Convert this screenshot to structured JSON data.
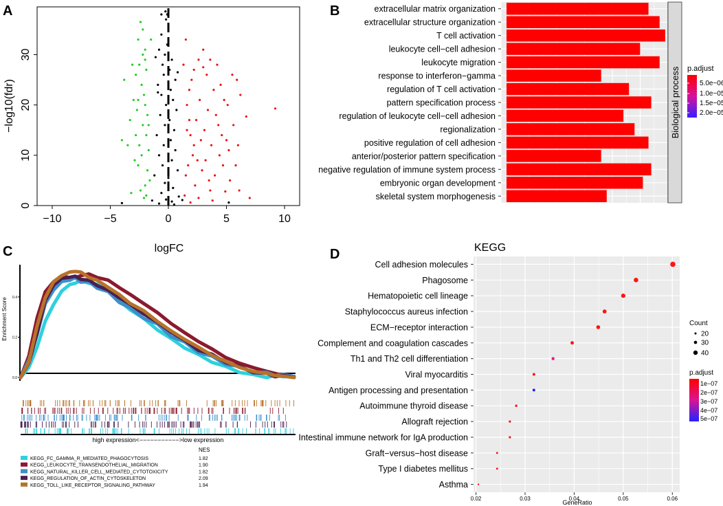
{
  "panels": {
    "A": {
      "letter": "A",
      "chart_data": {
        "type": "scatter",
        "title": "",
        "xlabel": "logFC",
        "ylabel": "−log10(fdr)",
        "xlim": [
          -11.3,
          11.3
        ],
        "ylim": [
          0,
          39.5
        ],
        "x_ticks": [
          -10,
          -5,
          0,
          5,
          10
        ],
        "x_tick_labels": [
          "−10",
          "−5",
          "0",
          "5",
          "10"
        ],
        "y_ticks": [
          0,
          10,
          20,
          30
        ],
        "y_tick_labels": [
          "0",
          "10",
          "20",
          "30"
        ],
        "threshold_line_x": 0,
        "colors": {
          "down": "#22cc22",
          "up": "#ee1111",
          "ns": "#000000"
        },
        "green_points": [
          [
            -2.6,
            33
          ],
          [
            -2.4,
            36.5
          ],
          [
            -2.2,
            30
          ],
          [
            -2.0,
            31
          ],
          [
            -2.5,
            28
          ],
          [
            -2.8,
            26
          ],
          [
            -2.3,
            24
          ],
          [
            -2.1,
            22
          ],
          [
            -1.9,
            27
          ],
          [
            -3.0,
            21
          ],
          [
            -2.7,
            19
          ],
          [
            -1.8,
            18
          ],
          [
            -3.3,
            17
          ],
          [
            -2.2,
            16
          ],
          [
            -1.9,
            14
          ],
          [
            -2.0,
            20
          ],
          [
            -3.8,
            25
          ],
          [
            -2.5,
            12
          ],
          [
            -1.7,
            11
          ],
          [
            -2.3,
            10
          ],
          [
            -2.9,
            9
          ],
          [
            -2.6,
            8
          ],
          [
            -1.8,
            7
          ],
          [
            -1.6,
            5
          ],
          [
            -2.0,
            4
          ],
          [
            -3.5,
            12
          ],
          [
            -4.0,
            13
          ],
          [
            -2.4,
            3
          ],
          [
            -1.9,
            2
          ],
          [
            -2.1,
            1.5
          ],
          [
            -3.2,
            2.5
          ],
          [
            -2.8,
            14
          ],
          [
            -1.7,
            16
          ],
          [
            -2.6,
            21
          ],
          [
            -3.1,
            28
          ],
          [
            -2.0,
            29
          ],
          [
            -1.5,
            33
          ],
          [
            -2.2,
            35
          ]
        ],
        "red_points": [
          [
            1.5,
            33
          ],
          [
            2.6,
            29
          ],
          [
            3.6,
            29
          ],
          [
            4.2,
            28
          ],
          [
            3.0,
            27.5
          ],
          [
            2.2,
            27
          ],
          [
            5.5,
            26
          ],
          [
            3.3,
            26
          ],
          [
            5.9,
            25
          ],
          [
            4.5,
            24
          ],
          [
            1.8,
            23
          ],
          [
            3.9,
            23
          ],
          [
            6.2,
            22
          ],
          [
            2.7,
            21
          ],
          [
            4.8,
            21
          ],
          [
            5.1,
            20
          ],
          [
            1.6,
            20
          ],
          [
            3.4,
            19
          ],
          [
            9.2,
            19.3
          ],
          [
            6.7,
            17.7
          ],
          [
            4.1,
            18
          ],
          [
            2.4,
            17
          ],
          [
            5.6,
            16
          ],
          [
            3.1,
            15
          ],
          [
            1.9,
            14
          ],
          [
            4.6,
            14
          ],
          [
            2.8,
            13
          ],
          [
            6.0,
            12
          ],
          [
            3.7,
            12
          ],
          [
            5.2,
            11
          ],
          [
            2.1,
            10
          ],
          [
            4.4,
            10
          ],
          [
            3.2,
            9
          ],
          [
            5.8,
            8
          ],
          [
            1.7,
            8
          ],
          [
            2.9,
            7
          ],
          [
            4.0,
            6
          ],
          [
            3.5,
            5
          ],
          [
            2.3,
            4
          ],
          [
            6.1,
            3
          ],
          [
            4.9,
            2.8
          ],
          [
            1.4,
            2
          ],
          [
            2.6,
            1.5
          ],
          [
            3.8,
            1
          ],
          [
            1.9,
            0.6
          ],
          [
            7.0,
            1.5
          ],
          [
            5.3,
            5
          ],
          [
            4.3,
            16
          ],
          [
            2.0,
            25
          ],
          [
            1.3,
            28
          ],
          [
            3.0,
            31
          ],
          [
            2.2,
            12
          ],
          [
            1.6,
            15
          ],
          [
            1.5,
            6
          ],
          [
            4.7,
            8
          ],
          [
            3.6,
            3
          ],
          [
            2.5,
            9
          ],
          [
            5.0,
            13
          ],
          [
            1.8,
            17
          ]
        ],
        "black_points": [
          [
            -0.25,
            38.6
          ],
          [
            -0.1,
            38
          ],
          [
            -0.6,
            38
          ],
          [
            -0.2,
            37
          ],
          [
            -0.8,
            31
          ],
          [
            -0.3,
            30
          ],
          [
            -1.1,
            29.5
          ],
          [
            -0.5,
            28
          ],
          [
            0.3,
            29
          ],
          [
            0.1,
            27
          ],
          [
            -0.4,
            26
          ],
          [
            0.6,
            25
          ],
          [
            -0.9,
            24
          ],
          [
            0.2,
            23
          ],
          [
            -0.6,
            22
          ],
          [
            0.4,
            21
          ],
          [
            -0.2,
            20
          ],
          [
            0.7,
            19
          ],
          [
            -0.7,
            18
          ],
          [
            0.1,
            17
          ],
          [
            -0.3,
            16
          ],
          [
            0.5,
            15
          ],
          [
            -1.0,
            14
          ],
          [
            0.2,
            13
          ],
          [
            -0.4,
            12
          ],
          [
            0.6,
            11
          ],
          [
            -0.8,
            10
          ],
          [
            0.3,
            9
          ],
          [
            -0.5,
            8
          ],
          [
            0.8,
            7
          ],
          [
            -1.2,
            6
          ],
          [
            0.0,
            5.5
          ],
          [
            -0.3,
            4.5
          ],
          [
            0.4,
            3.5
          ],
          [
            -0.6,
            2.5
          ],
          [
            0.9,
            1.8
          ],
          [
            -0.2,
            1.2
          ],
          [
            0.3,
            0.8
          ],
          [
            -0.8,
            0.4
          ],
          [
            0.5,
            0.2
          ],
          [
            -4.0,
            0.5
          ],
          [
            5.2,
            0.6
          ],
          [
            -1.4,
            1.0
          ],
          [
            1.2,
            1.1
          ],
          [
            -0.9,
            22.5
          ],
          [
            0.8,
            26.5
          ],
          [
            -0.6,
            34
          ],
          [
            -0.1,
            32
          ]
        ]
      }
    },
    "B": {
      "letter": "B",
      "chart_data": {
        "type": "bar",
        "orientation": "horizontal",
        "strip_label": "Biological process",
        "categories": [
          "extracellular matrix organization",
          "extracellular structure organization",
          "T cell activation",
          "leukocyte cell−cell adhesion",
          "leukocyte migration",
          "response to interferon−gamma",
          "regulation of T cell activation",
          "pattern specification process",
          "regulation of leukocyte cell−cell adhesion",
          "regionalization",
          "positive regulation of cell adhesion",
          "anterior/posterior pattern specification",
          "negative regulation of immune system process",
          "embryonic organ development",
          "skeletal system morphogenesis"
        ],
        "values": [
          51,
          55,
          57,
          48,
          55,
          34,
          44,
          52,
          42,
          46,
          51,
          34,
          52,
          49,
          36
        ],
        "xlim": [
          0,
          60
        ],
        "legend": {
          "title": "p.adjust",
          "labels": [
            "5.0e−06",
            "1.0e−05",
            "1.5e−05",
            "2.0e−05"
          ],
          "color_low": "#ff0000",
          "color_high": "#3b1cff"
        }
      }
    },
    "C": {
      "letter": "C",
      "chart_data": {
        "type": "line",
        "ylabel": "Enrichment Score",
        "xlabel": "high expression<−−−−−−−−−−−>low expression",
        "y_ticks": [
          0.0,
          0.2,
          0.4
        ],
        "y_tick_labels": [
          "0.0",
          "0.2",
          "0.4"
        ],
        "ylim": [
          -0.01,
          0.56
        ],
        "x": [
          0,
          3,
          6,
          9,
          12,
          15,
          18,
          20,
          22,
          25,
          28,
          32,
          36,
          40,
          45,
          50,
          55,
          60,
          65,
          70,
          75,
          80,
          85,
          90,
          93,
          96,
          100
        ],
        "nes_header": "NES",
        "series": [
          {
            "name": "KEGG_FC_GAMMA_R_MEDIATED_PHAGOCYTOSIS",
            "nes": "1.82",
            "color": "#2fd0de",
            "values": [
              0,
              0.05,
              0.15,
              0.28,
              0.36,
              0.43,
              0.46,
              0.47,
              0.48,
              0.47,
              0.46,
              0.43,
              0.38,
              0.34,
              0.29,
              0.24,
              0.19,
              0.15,
              0.11,
              0.08,
              0.05,
              0.03,
              0.01,
              0.005,
              0.005,
              0.01,
              0.005
            ]
          },
          {
            "name": "KEGG_LEUKOCYTE_TRANSENDOTHELIAL_MIGRATION",
            "nes": "1.90",
            "color": "#8a1a2e",
            "values": [
              0,
              0.1,
              0.3,
              0.42,
              0.48,
              0.5,
              0.5,
              0.49,
              0.51,
              0.51,
              0.5,
              0.48,
              0.45,
              0.41,
              0.37,
              0.32,
              0.27,
              0.22,
              0.18,
              0.14,
              0.1,
              0.07,
              0.05,
              0.03,
              0.02,
              0.01,
              0.005
            ]
          },
          {
            "name": "KEGG_NATURAL_KILLER_CELL_MEDIATED_CYTOTOXICITY",
            "nes": "1.82",
            "color": "#3d8fc9",
            "values": [
              0,
              0.08,
              0.22,
              0.36,
              0.44,
              0.47,
              0.49,
              0.49,
              0.48,
              0.47,
              0.45,
              0.42,
              0.38,
              0.34,
              0.3,
              0.26,
              0.21,
              0.17,
              0.13,
              0.1,
              0.07,
              0.05,
              0.03,
              0.02,
              0.015,
              0.01,
              0.005
            ]
          },
          {
            "name": "KEGG_REGULATION_OF_ACTIN_CYTOSKELETON",
            "nes": "2.09",
            "color": "#4b2050",
            "values": [
              0,
              0.07,
              0.22,
              0.38,
              0.46,
              0.49,
              0.5,
              0.5,
              0.49,
              0.48,
              0.46,
              0.43,
              0.4,
              0.36,
              0.32,
              0.27,
              0.23,
              0.18,
              0.14,
              0.11,
              0.08,
              0.05,
              0.03,
              0.015,
              0.01,
              0.005,
              0.0
            ]
          },
          {
            "name": "KEGG_TOLL_LIKE_RECEPTOR_SIGNALING_PATHWAY",
            "nes": "1.94",
            "color": "#b8732a",
            "values": [
              0,
              0.08,
              0.25,
              0.4,
              0.47,
              0.51,
              0.52,
              0.53,
              0.52,
              0.5,
              0.48,
              0.45,
              0.41,
              0.37,
              0.33,
              0.28,
              0.23,
              0.19,
              0.15,
              0.11,
              0.08,
              0.05,
              0.03,
              0.02,
              0.01,
              0.005,
              0.0
            ]
          }
        ]
      }
    },
    "D": {
      "letter": "D",
      "chart_data": {
        "type": "scatter",
        "title": "KEGG",
        "xlabel": "GeneRatio",
        "xlim": [
          0.0195,
          0.0615
        ],
        "x_ticks": [
          0.02,
          0.03,
          0.04,
          0.05,
          0.06
        ],
        "x_tick_labels": [
          "0.02",
          "0.03",
          "0.04",
          "0.05",
          "0.06"
        ],
        "categories": [
          "Cell adhesion molecules",
          "Phagosome",
          "Hematopoietic cell lineage",
          "Staphylococcus aureus infection",
          "ECM−receptor interaction",
          "Complement and coagulation cascades",
          "Th1 and Th2 cell differentiation",
          "Viral myocarditis",
          "Antigen processing and presentation",
          "Autoimmune thyroid disease",
          "Allograft rejection",
          "Intestinal immune network for IgA production",
          "Graft−versus−host disease",
          "Type I diabetes mellitus",
          "Asthma"
        ],
        "gene_ratio": [
          0.0601,
          0.0526,
          0.05,
          0.0462,
          0.0449,
          0.0396,
          0.0357,
          0.0318,
          0.0318,
          0.0282,
          0.0269,
          0.0269,
          0.0243,
          0.0243,
          0.0205
        ],
        "count": [
          47,
          41,
          39,
          36,
          35,
          31,
          28,
          25,
          25,
          22,
          21,
          21,
          19,
          19,
          16
        ],
        "point_colors": [
          "#ff1414",
          "#ff1414",
          "#ff1414",
          "#ff1414",
          "#ff1414",
          "#ff1414",
          "#e6198a",
          "#ff1414",
          "#2020e8",
          "#ff1414",
          "#ff1414",
          "#ff1414",
          "#ff1414",
          "#ff1414",
          "#ff1414"
        ],
        "legend_count": {
          "title": "Count",
          "labels": [
            "20",
            "30",
            "40"
          ]
        },
        "legend_padj": {
          "title": "p.adjust",
          "labels": [
            "1e−07",
            "2e−07",
            "3e−07",
            "4e−07",
            "5e−07"
          ],
          "color_low": "#ff0000",
          "color_high": "#2222ff"
        }
      }
    }
  }
}
